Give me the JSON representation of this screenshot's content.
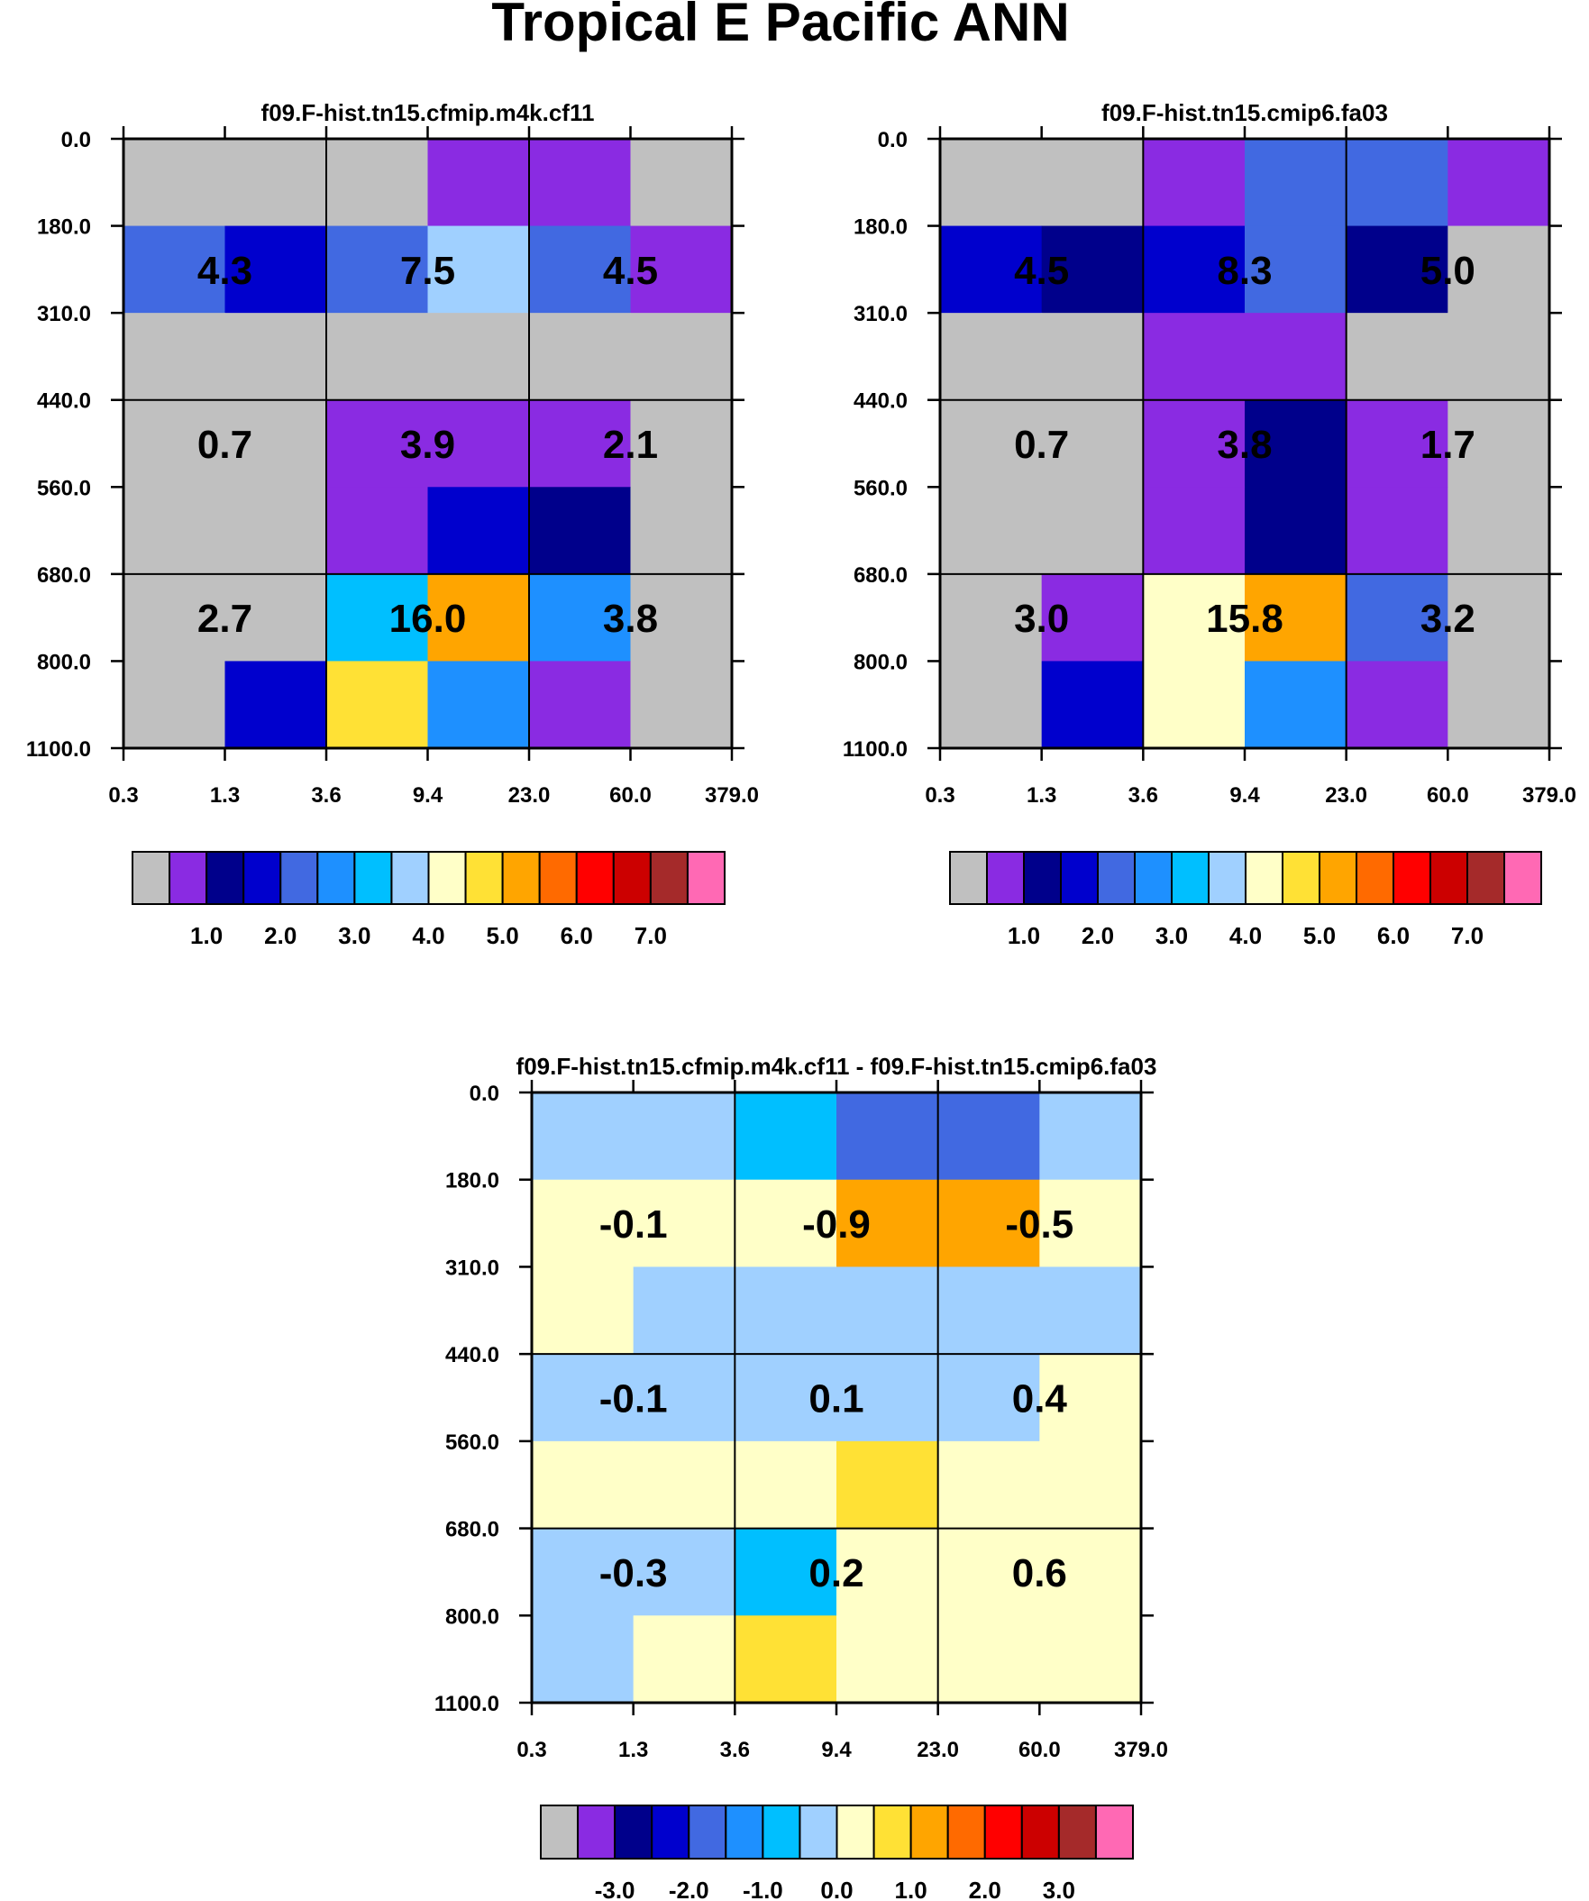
{
  "chart_data": {
    "type": "heatmap",
    "title": "Tropical E Pacific ANN",
    "panels": [
      {
        "name": "left",
        "title": "f09.F-hist.tn15.cfmip.m4k.cf11",
        "xlabel": "",
        "ylabel": "",
        "x_ticks": [
          "0.3",
          "1.3",
          "3.6",
          "9.4",
          "23.0",
          "60.0",
          "379.0"
        ],
        "y_ticks": [
          "0.0",
          "180.0",
          "310.0",
          "440.0",
          "560.0",
          "680.0",
          "800.0",
          "1100.0"
        ],
        "grid_color_indices": [
          [
            0,
            0,
            0,
            1,
            1,
            0
          ],
          [
            4,
            3,
            4,
            7,
            4,
            1
          ],
          [
            0,
            0,
            0,
            0,
            0,
            0
          ],
          [
            0,
            0,
            1,
            1,
            1,
            0
          ],
          [
            0,
            0,
            1,
            3,
            2,
            0
          ],
          [
            0,
            0,
            6,
            10,
            5,
            0
          ],
          [
            0,
            3,
            9,
            5,
            1,
            0
          ]
        ],
        "summary_values": [
          [
            "4.3",
            "7.5",
            "4.5"
          ],
          [
            "0.7",
            "3.9",
            "2.1"
          ],
          [
            "2.7",
            "16.0",
            "3.8"
          ]
        ],
        "colorbar": {
          "labels": [
            "1.0",
            "2.0",
            "3.0",
            "4.0",
            "5.0",
            "6.0",
            "7.0"
          ],
          "colors": [
            "#c0c0c0",
            "#8a2be2",
            "#00008b",
            "#0000cd",
            "#4169e1",
            "#1e90ff",
            "#00bfff",
            "#a0d0ff",
            "#ffffc8",
            "#ffe135",
            "#ffa500",
            "#ff6a00",
            "#ff0000",
            "#cc0000",
            "#a52a2a",
            "#ff69b4"
          ]
        }
      },
      {
        "name": "right",
        "title": "f09.F-hist.tn15.cmip6.fa03",
        "xlabel": "",
        "ylabel": "",
        "x_ticks": [
          "0.3",
          "1.3",
          "3.6",
          "9.4",
          "23.0",
          "60.0",
          "379.0"
        ],
        "y_ticks": [
          "0.0",
          "180.0",
          "310.0",
          "440.0",
          "560.0",
          "680.0",
          "800.0",
          "1100.0"
        ],
        "grid_color_indices": [
          [
            0,
            0,
            1,
            4,
            4,
            1
          ],
          [
            3,
            2,
            3,
            4,
            2,
            0
          ],
          [
            0,
            0,
            1,
            1,
            0,
            0
          ],
          [
            0,
            0,
            1,
            2,
            1,
            0
          ],
          [
            0,
            0,
            1,
            2,
            1,
            0
          ],
          [
            0,
            1,
            8,
            10,
            4,
            0
          ],
          [
            0,
            3,
            8,
            5,
            1,
            0
          ]
        ],
        "summary_values": [
          [
            "4.5",
            "8.3",
            "5.0"
          ],
          [
            "0.7",
            "3.8",
            "1.7"
          ],
          [
            "3.0",
            "15.8",
            "3.2"
          ]
        ],
        "colorbar": {
          "labels": [
            "1.0",
            "2.0",
            "3.0",
            "4.0",
            "5.0",
            "6.0",
            "7.0"
          ],
          "colors": [
            "#c0c0c0",
            "#8a2be2",
            "#00008b",
            "#0000cd",
            "#4169e1",
            "#1e90ff",
            "#00bfff",
            "#a0d0ff",
            "#ffffc8",
            "#ffe135",
            "#ffa500",
            "#ff6a00",
            "#ff0000",
            "#cc0000",
            "#a52a2a",
            "#ff69b4"
          ]
        }
      },
      {
        "name": "diff",
        "title": "f09.F-hist.tn15.cfmip.m4k.cf11 - f09.F-hist.tn15.cmip6.fa03",
        "xlabel": "",
        "ylabel": "",
        "x_ticks": [
          "0.3",
          "1.3",
          "3.6",
          "9.4",
          "23.0",
          "60.0",
          "379.0"
        ],
        "y_ticks": [
          "0.0",
          "180.0",
          "310.0",
          "440.0",
          "560.0",
          "680.0",
          "800.0",
          "1100.0"
        ],
        "grid_color_indices": [
          [
            7,
            7,
            6,
            4,
            4,
            7
          ],
          [
            8,
            8,
            8,
            10,
            10,
            8
          ],
          [
            8,
            7,
            7,
            7,
            7,
            7
          ],
          [
            7,
            7,
            7,
            7,
            7,
            8
          ],
          [
            8,
            8,
            8,
            9,
            8,
            8
          ],
          [
            7,
            7,
            6,
            8,
            8,
            8
          ],
          [
            7,
            8,
            9,
            8,
            8,
            8
          ]
        ],
        "summary_values": [
          [
            "-0.1",
            "-0.9",
            "-0.5"
          ],
          [
            "-0.1",
            "0.1",
            "0.4"
          ],
          [
            "-0.3",
            "0.2",
            "0.6"
          ]
        ],
        "colorbar": {
          "labels": [
            "-3.0",
            "-2.0",
            "-1.0",
            "0.0",
            "1.0",
            "2.0",
            "3.0"
          ],
          "colors": [
            "#c0c0c0",
            "#8a2be2",
            "#00008b",
            "#0000cd",
            "#4169e1",
            "#1e90ff",
            "#00bfff",
            "#a0d0ff",
            "#ffffc8",
            "#ffe135",
            "#ffa500",
            "#ff6a00",
            "#ff0000",
            "#cc0000",
            "#a52a2a",
            "#ff69b4"
          ]
        }
      }
    ]
  }
}
